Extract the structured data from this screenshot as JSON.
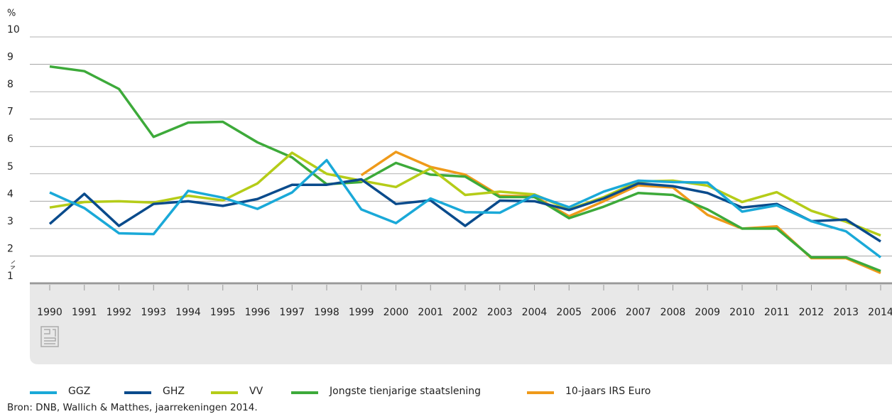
{
  "chart_data": {
    "type": "line",
    "y_unit": "%",
    "categories": [
      "1990",
      "1991",
      "1992",
      "1993",
      "1994",
      "1995",
      "1996",
      "1997",
      "1998",
      "1999",
      "2000",
      "2001",
      "2002",
      "2003",
      "2004",
      "2005",
      "2006",
      "2007",
      "2008",
      "2009",
      "2010",
      "2011",
      "2012",
      "2013",
      "2014"
    ],
    "ylim": [
      1,
      10
    ],
    "yticks": [
      1,
      2,
      3,
      4,
      5,
      6,
      7,
      8,
      9,
      10
    ],
    "grid": true,
    "series": [
      {
        "name": "GGZ",
        "color": "#1aa9d8",
        "values": [
          4.32,
          3.75,
          2.83,
          2.8,
          4.38,
          4.13,
          3.72,
          4.32,
          5.5,
          3.7,
          3.2,
          4.1,
          3.6,
          3.58,
          4.22,
          3.78,
          4.35,
          4.75,
          4.7,
          4.68,
          3.62,
          3.85,
          3.27,
          2.9,
          1.95
        ]
      },
      {
        "name": "GHZ",
        "color": "#0a4b8c",
        "values": [
          3.17,
          4.27,
          3.1,
          3.9,
          4.0,
          3.83,
          4.08,
          4.6,
          4.6,
          4.8,
          3.9,
          4.03,
          3.1,
          4.02,
          4.0,
          3.68,
          4.1,
          4.65,
          4.55,
          4.3,
          3.77,
          3.9,
          3.27,
          3.33,
          2.53
        ]
      },
      {
        "name": "VV",
        "color": "#b5cc18",
        "values": [
          3.77,
          3.97,
          4.0,
          3.95,
          4.2,
          4.03,
          4.65,
          5.77,
          5.0,
          4.75,
          4.52,
          5.2,
          4.23,
          4.35,
          4.25,
          3.7,
          4.15,
          4.72,
          4.75,
          4.57,
          3.97,
          4.33,
          3.65,
          3.25,
          2.75
        ]
      },
      {
        "name": "Jongste tienjarige staatslening",
        "color": "#3daa3a",
        "values": [
          8.92,
          8.75,
          8.1,
          6.35,
          6.87,
          6.9,
          6.15,
          5.6,
          4.62,
          4.7,
          5.4,
          4.97,
          4.9,
          4.15,
          4.15,
          3.38,
          3.8,
          4.3,
          4.23,
          3.7,
          3.0,
          3.0,
          1.95,
          1.95,
          1.45
        ]
      },
      {
        "name": "10-jaars IRS Euro",
        "color": "#ef9a1a",
        "values": [
          null,
          null,
          null,
          null,
          null,
          null,
          null,
          null,
          null,
          4.95,
          5.8,
          5.25,
          4.97,
          4.2,
          4.18,
          3.45,
          4.0,
          4.58,
          4.5,
          3.5,
          3.0,
          3.08,
          1.92,
          1.92,
          1.38
        ]
      }
    ],
    "source": "Bron: DNB, Wallich & Matthes, jaarrekeningen 2014."
  }
}
